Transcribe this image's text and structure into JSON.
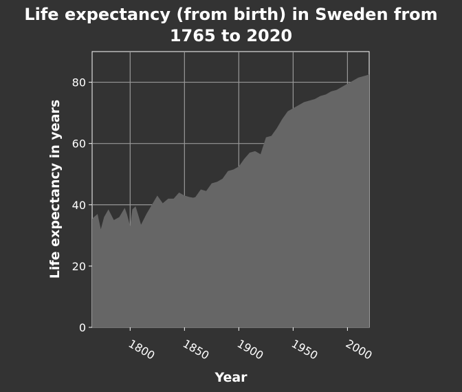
{
  "chart_data": {
    "type": "area",
    "title_line1": "Life expectancy (from birth) in Sweden from",
    "title_line2": "1765 to 2020",
    "xlabel": "Year",
    "ylabel": "Life expectancy in years",
    "xlim": [
      1765,
      2020
    ],
    "ylim": [
      0,
      90
    ],
    "xticks": [
      1800,
      1850,
      1900,
      1950,
      2000
    ],
    "yticks": [
      0,
      20,
      40,
      60,
      80
    ],
    "grid": true,
    "colors": {
      "background": "#333333",
      "fill": "#666666",
      "grid": "#999999",
      "text": "#ffffff"
    },
    "x": [
      1765,
      1770,
      1773,
      1776,
      1780,
      1785,
      1790,
      1795,
      1797,
      1800,
      1802,
      1805,
      1808,
      1810,
      1815,
      1820,
      1825,
      1830,
      1835,
      1840,
      1845,
      1850,
      1855,
      1858,
      1860,
      1865,
      1870,
      1875,
      1880,
      1885,
      1890,
      1895,
      1900,
      1905,
      1910,
      1915,
      1920,
      1925,
      1930,
      1935,
      1940,
      1945,
      1950,
      1955,
      1960,
      1965,
      1970,
      1975,
      1980,
      1985,
      1990,
      1995,
      2000,
      2005,
      2010,
      2015,
      2020
    ],
    "values": [
      35.5,
      37,
      32,
      36,
      38.5,
      35,
      36,
      39,
      37,
      33,
      38.5,
      39.5,
      36,
      33.5,
      37,
      40,
      43,
      40.5,
      42,
      42,
      44,
      43,
      42.5,
      42.3,
      42.5,
      45,
      44.5,
      47,
      47.5,
      48.5,
      51,
      51.5,
      52.5,
      55,
      57,
      57.5,
      56.5,
      62,
      62.5,
      65,
      68,
      70.5,
      71.5,
      72.5,
      73.5,
      74,
      74.5,
      75.5,
      76,
      77,
      77.5,
      78.5,
      79.5,
      80.5,
      81.5,
      82,
      82.5
    ]
  }
}
